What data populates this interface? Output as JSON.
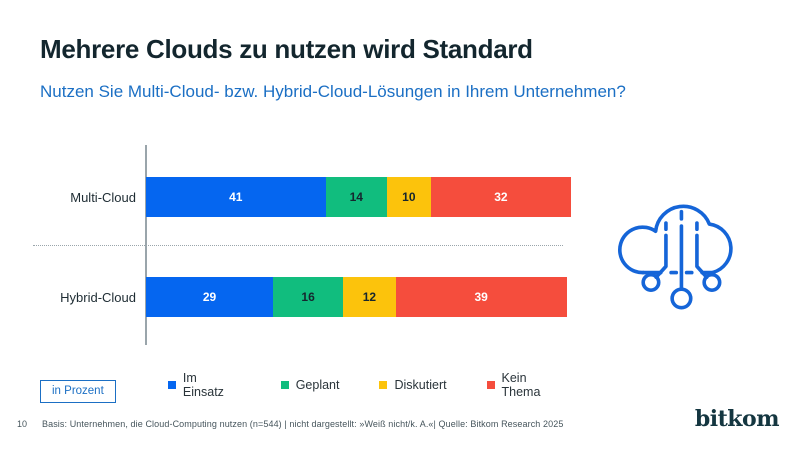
{
  "header": {
    "title": "Mehrere Clouds zu nutzen wird Standard",
    "subtitle": "Nutzen Sie Multi-Cloud- bzw. Hybrid-Cloud-Lösungen in Ihrem Unternehmen?"
  },
  "unit_box": {
    "label": "in Prozent"
  },
  "footer": {
    "page_number": "10",
    "basis": "Basis: Unternehmen, die Cloud-Computing nutzen (n=544) | nicht dargestellt: »Weiß nicht/k. A.«| Quelle: Bitkom Research 2025",
    "brand": "bitkom"
  },
  "icon": {
    "name": "cloud-computing-icon",
    "color": "#1565d8"
  },
  "colors": {
    "title": "#13262e",
    "accent_blue": "#1b6fc4",
    "axis_gray": "#9aa5ab"
  },
  "chart_data": {
    "type": "bar",
    "orientation": "horizontal",
    "stacked": true,
    "unit": "Prozent",
    "title": "",
    "xlabel": "",
    "ylabel": "",
    "xlim": [
      0,
      100
    ],
    "grid": false,
    "legend_position": "bottom",
    "value_labels": "inside",
    "categories": [
      "Multi-Cloud",
      "Hybrid-Cloud"
    ],
    "series": [
      {
        "name": "Im Einsatz",
        "color": "#0566f0",
        "value_label_color": "#ffffff",
        "values": [
          41,
          29
        ]
      },
      {
        "name": "Geplant",
        "color": "#11bd7e",
        "value_label_color": "#16262e",
        "values": [
          14,
          16
        ]
      },
      {
        "name": "Diskutiert",
        "color": "#fcc30c",
        "value_label_color": "#16262e",
        "values": [
          10,
          12
        ]
      },
      {
        "name": "Kein Thema",
        "color": "#f54d3d",
        "value_label_color": "#ffffff",
        "values": [
          32,
          39
        ]
      }
    ]
  }
}
